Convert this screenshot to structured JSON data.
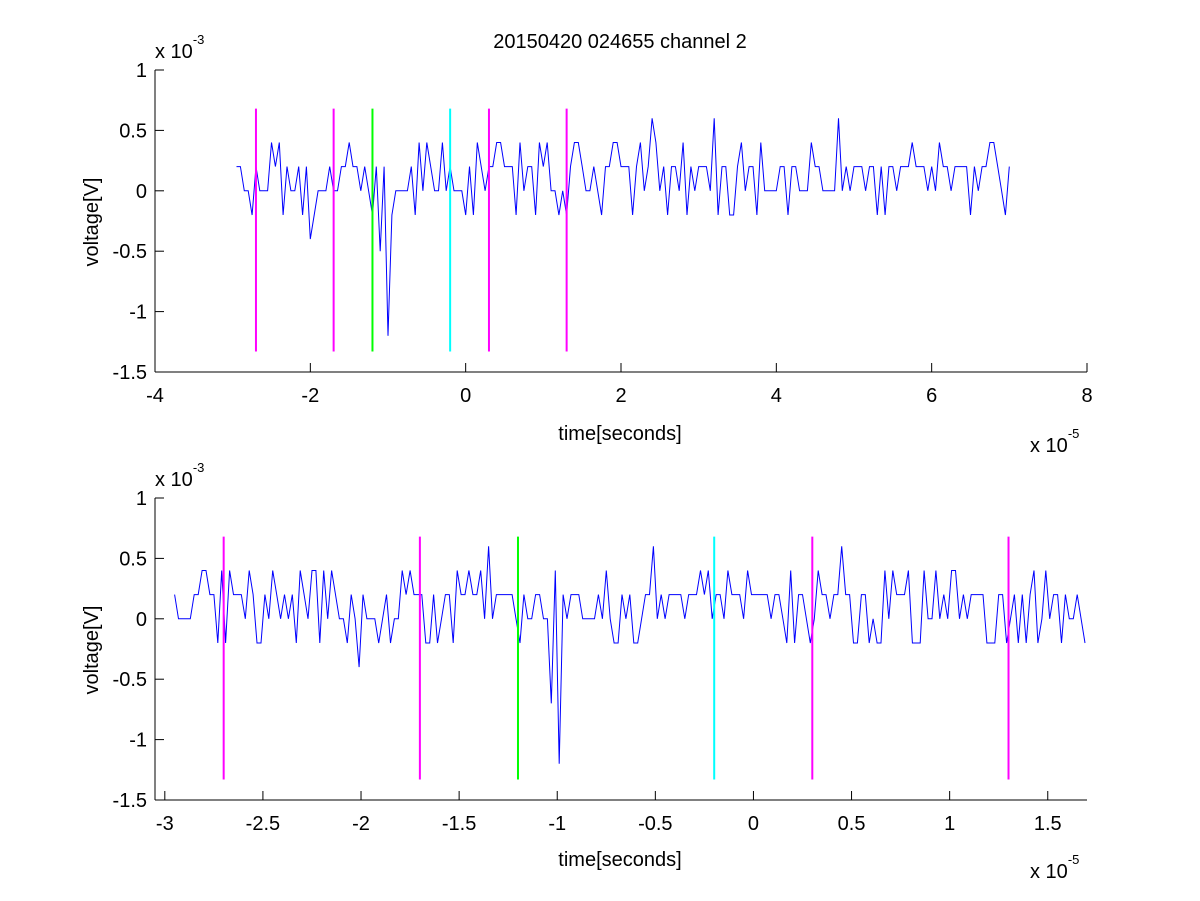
{
  "chart_data": [
    {
      "type": "line",
      "title": "20150420 024655 channel 2",
      "xlabel": "time[seconds]",
      "ylabel": "voltage[V]",
      "x_scale_label": "x 10",
      "x_scale_exp": "-5",
      "y_scale_label": "x 10",
      "y_scale_exp": "-3",
      "xlim": [
        -4,
        8
      ],
      "ylim": [
        -1.5,
        1
      ],
      "x_ticks": [
        "-4",
        "-2",
        "0",
        "2",
        "4",
        "6",
        "8"
      ],
      "x_tick_values": [
        -4,
        -2,
        0,
        2,
        4,
        6,
        8
      ],
      "y_ticks": [
        "1",
        "0.5",
        "0",
        "-0.5",
        "-1",
        "-1.5"
      ],
      "y_tick_values": [
        1,
        0.5,
        0,
        -0.5,
        -1,
        -1.5
      ],
      "grid": false,
      "signal": {
        "color": "#0000ff",
        "x_range": [
          -2.95,
          7.0
        ],
        "sample_step": 0.05,
        "levels": [
          -0.2,
          0,
          0.2,
          0.4
        ],
        "spikes": [
          {
            "x": -2.0,
            "y": -0.4
          },
          {
            "x": -1.0,
            "y": -1.2
          },
          {
            "x": -1.1,
            "y": -0.5
          },
          {
            "x": 3.2,
            "y": 0.6
          },
          {
            "x": 4.8,
            "y": 0.6
          },
          {
            "x": 2.4,
            "y": 0.6
          },
          {
            "x": 6.5,
            "y": -0.2
          }
        ]
      },
      "markers": [
        {
          "x": -2.7,
          "color": "#ff00ff"
        },
        {
          "x": -1.7,
          "color": "#ff00ff"
        },
        {
          "x": -1.2,
          "color": "#00ff00"
        },
        {
          "x": -0.2,
          "color": "#00ffff"
        },
        {
          "x": 0.3,
          "color": "#ff00ff"
        },
        {
          "x": 1.3,
          "color": "#ff00ff"
        }
      ],
      "marker_range": [
        -1.33,
        0.68
      ]
    },
    {
      "type": "line",
      "title": "",
      "xlabel": "time[seconds]",
      "ylabel": "voltage[V]",
      "x_scale_label": "x 10",
      "x_scale_exp": "-5",
      "y_scale_label": "x 10",
      "y_scale_exp": "-3",
      "xlim": [
        -3.05,
        1.7
      ],
      "ylim": [
        -1.5,
        1
      ],
      "x_ticks": [
        "-3",
        "-2.5",
        "-2",
        "-1.5",
        "-1",
        "-0.5",
        "0",
        "0.5",
        "1",
        "1.5"
      ],
      "x_tick_values": [
        -3,
        -2.5,
        -2,
        -1.5,
        -1,
        -0.5,
        0,
        0.5,
        1,
        1.5
      ],
      "y_ticks": [
        "1",
        "0.5",
        "0",
        "-0.5",
        "-1",
        "-1.5"
      ],
      "y_tick_values": [
        1,
        0.5,
        0,
        -0.5,
        -1,
        -1.5
      ],
      "grid": false,
      "signal": {
        "color": "#0000ff",
        "x_range": [
          -2.95,
          1.7
        ],
        "sample_step": 0.02,
        "levels": [
          -0.2,
          0,
          0.2,
          0.4
        ],
        "spikes": [
          {
            "x": -2.0,
            "y": -0.4
          },
          {
            "x": -1.35,
            "y": 0.6
          },
          {
            "x": -1.02,
            "y": -0.7
          },
          {
            "x": -0.98,
            "y": -1.2
          },
          {
            "x": -0.5,
            "y": -0.2
          },
          {
            "x": -0.5,
            "y": 0.6
          },
          {
            "x": 0.45,
            "y": 0.6
          },
          {
            "x": 0.3,
            "y": -0.2
          }
        ]
      },
      "markers": [
        {
          "x": -2.7,
          "color": "#ff00ff"
        },
        {
          "x": -1.7,
          "color": "#ff00ff"
        },
        {
          "x": -1.2,
          "color": "#00ff00"
        },
        {
          "x": -0.2,
          "color": "#00ffff"
        },
        {
          "x": 0.3,
          "color": "#ff00ff"
        },
        {
          "x": 1.3,
          "color": "#ff00ff"
        }
      ],
      "marker_range": [
        -1.33,
        0.68
      ]
    }
  ]
}
